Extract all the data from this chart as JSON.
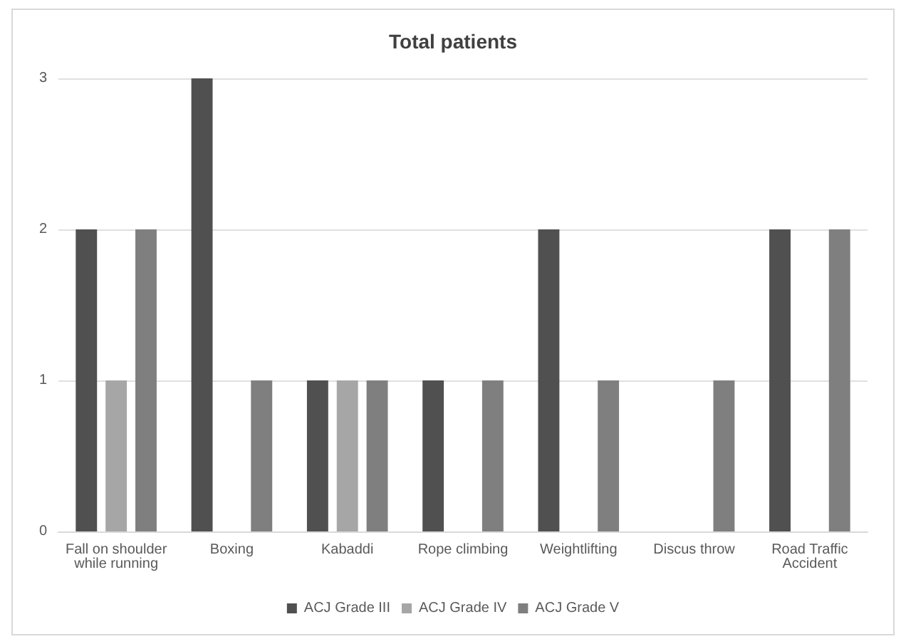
{
  "chart_data": {
    "type": "bar",
    "title": "Total patients",
    "categories": [
      "Fall on shoulder\nwhile running",
      "Boxing",
      "Kabaddi",
      "Rope climbing",
      "Weightlifting",
      "Discus throw",
      "Road Traffic\nAccident"
    ],
    "series": [
      {
        "name": "ACJ Grade III",
        "color": "#505050",
        "values": [
          2,
          3,
          1,
          1,
          2,
          0,
          2
        ]
      },
      {
        "name": "ACJ Grade IV",
        "color": "#a6a6a6",
        "values": [
          1,
          0,
          1,
          0,
          0,
          0,
          0
        ]
      },
      {
        "name": "ACJ Grade V",
        "color": "#7f7f7f",
        "values": [
          2,
          1,
          1,
          1,
          1,
          1,
          2
        ]
      }
    ],
    "ylim": [
      0,
      3
    ],
    "yticks": [
      0,
      1,
      2,
      3
    ],
    "grid": "y",
    "legend": "bottom"
  }
}
